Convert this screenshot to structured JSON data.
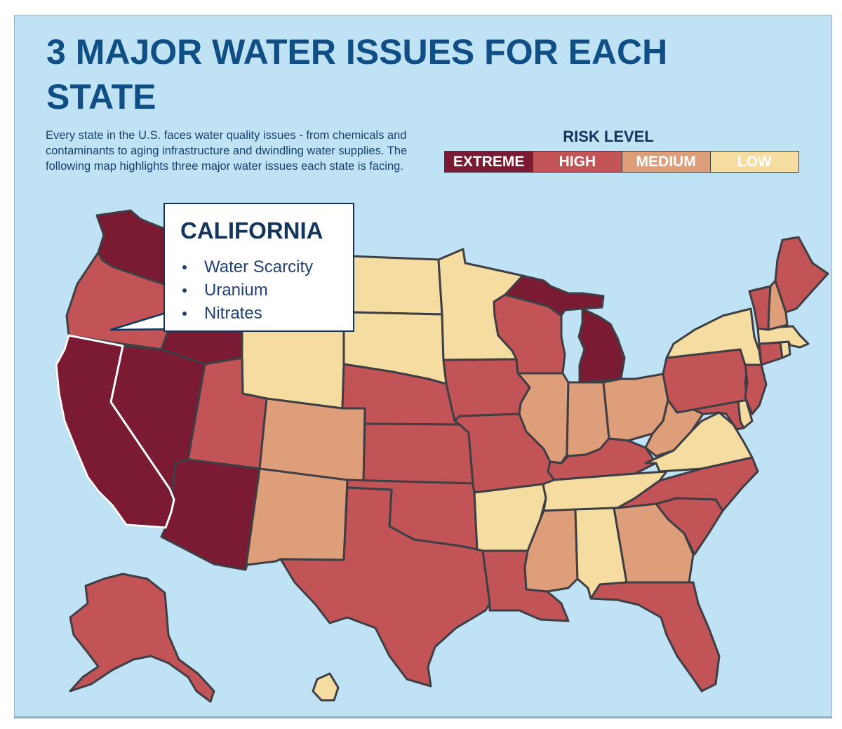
{
  "title": "3 MAJOR WATER ISSUES FOR EACH STATE",
  "subtitle": "Every state in the U.S. faces water quality issues - from chemicals and contaminants to aging infrastructure and dwindling water supplies. The following map highlights three major water issues each state is facing.",
  "legend": {
    "title": "RISK LEVEL",
    "items": [
      {
        "label": "EXTREME",
        "color": "#7b1a33"
      },
      {
        "label": "HIGH",
        "color": "#c25457"
      },
      {
        "label": "MEDIUM",
        "color": "#dd9e79"
      },
      {
        "label": "LOW",
        "color": "#f5dca0"
      }
    ]
  },
  "colors": {
    "background": "#bfe3f5",
    "title": "#0f4f86",
    "state_border": "#3e3e44",
    "highlight_border": "#ffffff"
  },
  "highlighted_state": "California",
  "callout": {
    "title": "CALIFORNIA",
    "issues": [
      "Water Scarcity",
      "Uranium",
      "Nitrates"
    ]
  },
  "states": [
    {
      "name": "Washington",
      "risk": "EXTREME"
    },
    {
      "name": "Oregon",
      "risk": "HIGH"
    },
    {
      "name": "California",
      "risk": "EXTREME"
    },
    {
      "name": "Nevada",
      "risk": "EXTREME"
    },
    {
      "name": "Idaho",
      "risk": "EXTREME"
    },
    {
      "name": "Montana",
      "risk": "LOW"
    },
    {
      "name": "Wyoming",
      "risk": "LOW"
    },
    {
      "name": "Utah",
      "risk": "HIGH"
    },
    {
      "name": "Arizona",
      "risk": "EXTREME"
    },
    {
      "name": "Colorado",
      "risk": "MEDIUM"
    },
    {
      "name": "New Mexico",
      "risk": "MEDIUM"
    },
    {
      "name": "North Dakota",
      "risk": "LOW"
    },
    {
      "name": "South Dakota",
      "risk": "LOW"
    },
    {
      "name": "Nebraska",
      "risk": "HIGH"
    },
    {
      "name": "Kansas",
      "risk": "HIGH"
    },
    {
      "name": "Oklahoma",
      "risk": "HIGH"
    },
    {
      "name": "Texas",
      "risk": "HIGH"
    },
    {
      "name": "Minnesota",
      "risk": "LOW"
    },
    {
      "name": "Iowa",
      "risk": "HIGH"
    },
    {
      "name": "Missouri",
      "risk": "HIGH"
    },
    {
      "name": "Arkansas",
      "risk": "LOW"
    },
    {
      "name": "Louisiana",
      "risk": "HIGH"
    },
    {
      "name": "Wisconsin",
      "risk": "HIGH"
    },
    {
      "name": "Illinois",
      "risk": "MEDIUM"
    },
    {
      "name": "Michigan",
      "risk": "EXTREME"
    },
    {
      "name": "Indiana",
      "risk": "MEDIUM"
    },
    {
      "name": "Ohio",
      "risk": "MEDIUM"
    },
    {
      "name": "Kentucky",
      "risk": "HIGH"
    },
    {
      "name": "Tennessee",
      "risk": "LOW"
    },
    {
      "name": "Mississippi",
      "risk": "MEDIUM"
    },
    {
      "name": "Alabama",
      "risk": "LOW"
    },
    {
      "name": "Georgia",
      "risk": "MEDIUM"
    },
    {
      "name": "Florida",
      "risk": "HIGH"
    },
    {
      "name": "South Carolina",
      "risk": "HIGH"
    },
    {
      "name": "North Carolina",
      "risk": "HIGH"
    },
    {
      "name": "Virginia",
      "risk": "LOW"
    },
    {
      "name": "West Virginia",
      "risk": "MEDIUM"
    },
    {
      "name": "Maryland",
      "risk": "HIGH"
    },
    {
      "name": "Delaware",
      "risk": "LOW"
    },
    {
      "name": "Pennsylvania",
      "risk": "HIGH"
    },
    {
      "name": "New Jersey",
      "risk": "HIGH"
    },
    {
      "name": "New York",
      "risk": "LOW"
    },
    {
      "name": "Connecticut",
      "risk": "HIGH"
    },
    {
      "name": "Rhode Island",
      "risk": "LOW"
    },
    {
      "name": "Massachusetts",
      "risk": "LOW"
    },
    {
      "name": "Vermont",
      "risk": "HIGH"
    },
    {
      "name": "New Hampshire",
      "risk": "MEDIUM"
    },
    {
      "name": "Maine",
      "risk": "HIGH"
    },
    {
      "name": "Alaska",
      "risk": "HIGH"
    },
    {
      "name": "Hawaii",
      "risk": "LOW"
    }
  ]
}
